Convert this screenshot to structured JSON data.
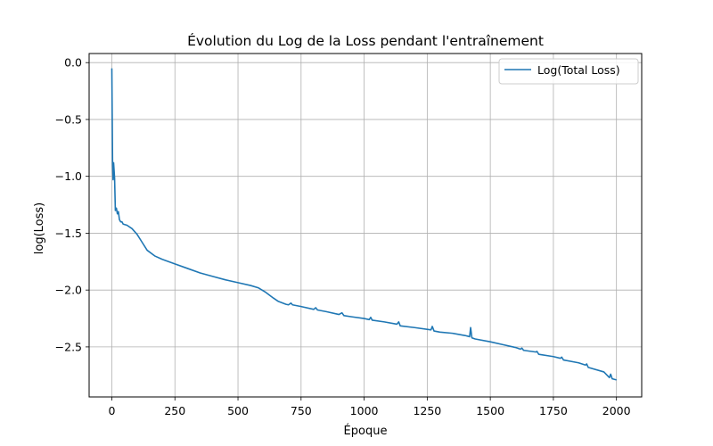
{
  "chart_data": {
    "type": "line",
    "title": "Évolution du Log de la Loss pendant l'entraînement",
    "xlabel": "Époque",
    "ylabel": "log(Loss)",
    "xlim": [
      -90,
      2100
    ],
    "ylim": [
      -2.94,
      0.08
    ],
    "xticks": [
      0,
      250,
      500,
      750,
      1000,
      1250,
      1500,
      1750,
      2000
    ],
    "yticks": [
      0.0,
      -0.5,
      -1.0,
      -1.5,
      -2.0,
      -2.5
    ],
    "xtick_labels": [
      "0",
      "250",
      "500",
      "750",
      "1000",
      "1250",
      "1500",
      "1750",
      "2000"
    ],
    "ytick_labels": [
      "0.0",
      "−0.5",
      "−1.0",
      "−1.5",
      "−2.0",
      "−2.5"
    ],
    "grid": true,
    "legend_position": "top-right",
    "colors": {
      "series": "#1f77b4",
      "grid": "#b0b0b0"
    },
    "series": [
      {
        "name": "Log(Total Loss)",
        "points": [
          [
            0,
            -0.05
          ],
          [
            3,
            -0.9
          ],
          [
            5,
            -1.03
          ],
          [
            7,
            -0.88
          ],
          [
            9,
            -0.95
          ],
          [
            11,
            -1.02
          ],
          [
            14,
            -1.3
          ],
          [
            18,
            -1.28
          ],
          [
            22,
            -1.33
          ],
          [
            26,
            -1.31
          ],
          [
            30,
            -1.38
          ],
          [
            35,
            -1.4
          ],
          [
            40,
            -1.4
          ],
          [
            45,
            -1.42
          ],
          [
            60,
            -1.43
          ],
          [
            80,
            -1.46
          ],
          [
            100,
            -1.51
          ],
          [
            120,
            -1.58
          ],
          [
            140,
            -1.65
          ],
          [
            170,
            -1.7
          ],
          [
            200,
            -1.73
          ],
          [
            250,
            -1.77
          ],
          [
            300,
            -1.81
          ],
          [
            350,
            -1.85
          ],
          [
            400,
            -1.88
          ],
          [
            450,
            -1.91
          ],
          [
            500,
            -1.935
          ],
          [
            550,
            -1.96
          ],
          [
            580,
            -1.98
          ],
          [
            610,
            -2.02
          ],
          [
            640,
            -2.07
          ],
          [
            660,
            -2.1
          ],
          [
            690,
            -2.125
          ],
          [
            700,
            -2.13
          ],
          [
            710,
            -2.115
          ],
          [
            716,
            -2.13
          ],
          [
            750,
            -2.145
          ],
          [
            800,
            -2.17
          ],
          [
            808,
            -2.155
          ],
          [
            815,
            -2.175
          ],
          [
            850,
            -2.19
          ],
          [
            900,
            -2.215
          ],
          [
            912,
            -2.2
          ],
          [
            920,
            -2.225
          ],
          [
            950,
            -2.235
          ],
          [
            1000,
            -2.25
          ],
          [
            1020,
            -2.26
          ],
          [
            1026,
            -2.24
          ],
          [
            1032,
            -2.265
          ],
          [
            1080,
            -2.28
          ],
          [
            1130,
            -2.3
          ],
          [
            1137,
            -2.28
          ],
          [
            1143,
            -2.315
          ],
          [
            1200,
            -2.33
          ],
          [
            1265,
            -2.35
          ],
          [
            1270,
            -2.32
          ],
          [
            1277,
            -2.36
          ],
          [
            1300,
            -2.37
          ],
          [
            1350,
            -2.38
          ],
          [
            1400,
            -2.4
          ],
          [
            1418,
            -2.41
          ],
          [
            1422,
            -2.33
          ],
          [
            1427,
            -2.42
          ],
          [
            1440,
            -2.43
          ],
          [
            1500,
            -2.455
          ],
          [
            1550,
            -2.48
          ],
          [
            1600,
            -2.505
          ],
          [
            1620,
            -2.52
          ],
          [
            1625,
            -2.51
          ],
          [
            1632,
            -2.53
          ],
          [
            1680,
            -2.545
          ],
          [
            1685,
            -2.54
          ],
          [
            1692,
            -2.565
          ],
          [
            1750,
            -2.585
          ],
          [
            1778,
            -2.6
          ],
          [
            1783,
            -2.59
          ],
          [
            1790,
            -2.615
          ],
          [
            1850,
            -2.64
          ],
          [
            1877,
            -2.66
          ],
          [
            1882,
            -2.65
          ],
          [
            1888,
            -2.68
          ],
          [
            1950,
            -2.72
          ],
          [
            1972,
            -2.77
          ],
          [
            1977,
            -2.74
          ],
          [
            1983,
            -2.78
          ],
          [
            2000,
            -2.79
          ]
        ]
      }
    ]
  }
}
